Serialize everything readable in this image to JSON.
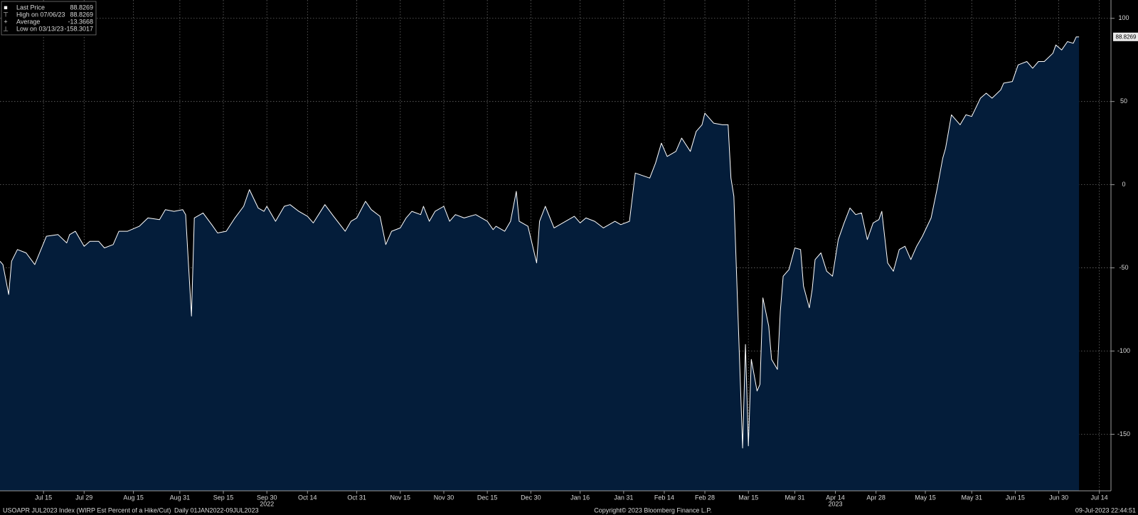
{
  "chart_data": {
    "type": "area",
    "legend": [
      {
        "label": "Last Price",
        "value": 88.8269
      },
      {
        "label": "High on 07/06/23",
        "value": 88.8269
      },
      {
        "label": "Average",
        "value": -13.3668
      },
      {
        "label": "Low on 03/13/23",
        "value": -158.3017
      }
    ],
    "x": [
      "2022-06-30",
      "2022-07-01",
      "2022-07-03",
      "2022-07-04",
      "2022-07-06",
      "2022-07-09",
      "2022-07-12",
      "2022-07-16",
      "2022-07-20",
      "2022-07-23",
      "2022-07-24",
      "2022-07-26",
      "2022-07-29",
      "2022-07-31",
      "2022-08-03",
      "2022-08-05",
      "2022-08-08",
      "2022-08-10",
      "2022-08-13",
      "2022-08-17",
      "2022-08-20",
      "2022-08-24",
      "2022-08-26",
      "2022-08-29",
      "2022-09-01",
      "2022-09-02",
      "2022-09-04",
      "2022-09-05",
      "2022-09-08",
      "2022-09-11",
      "2022-09-13",
      "2022-09-16",
      "2022-09-19",
      "2022-09-22",
      "2022-09-24",
      "2022-09-27",
      "2022-09-29",
      "2022-09-30",
      "2022-10-03",
      "2022-10-06",
      "2022-10-08",
      "2022-10-11",
      "2022-10-14",
      "2022-10-16",
      "2022-10-20",
      "2022-10-23",
      "2022-10-27",
      "2022-10-29",
      "2022-10-31",
      "2022-11-03",
      "2022-11-05",
      "2022-11-08",
      "2022-11-10",
      "2022-11-12",
      "2022-11-15",
      "2022-11-17",
      "2022-11-19",
      "2022-11-22",
      "2022-11-23",
      "2022-11-25",
      "2022-11-27",
      "2022-11-30",
      "2022-12-02",
      "2022-12-04",
      "2022-12-07",
      "2022-12-11",
      "2022-12-15",
      "2022-12-17",
      "2022-12-18",
      "2022-12-21",
      "2022-12-23",
      "2022-12-25",
      "2022-12-26",
      "2022-12-29",
      "2023-01-01",
      "2023-01-02",
      "2023-01-04",
      "2023-01-07",
      "2023-01-11",
      "2023-01-14",
      "2023-01-16",
      "2023-01-18",
      "2023-01-21",
      "2023-01-24",
      "2023-01-28",
      "2023-01-30",
      "2023-02-02",
      "2023-02-04",
      "2023-02-09",
      "2023-02-11",
      "2023-02-13",
      "2023-02-15",
      "2023-02-18",
      "2023-02-20",
      "2023-02-23",
      "2023-02-25",
      "2023-02-27",
      "2023-02-28",
      "2023-03-03",
      "2023-03-06",
      "2023-03-08",
      "2023-03-09",
      "2023-03-10",
      "2023-03-13",
      "2023-03-14",
      "2023-03-15",
      "2023-03-16",
      "2023-03-18",
      "2023-03-19",
      "2023-03-20",
      "2023-03-22",
      "2023-03-23",
      "2023-03-25",
      "2023-03-26",
      "2023-03-27",
      "2023-03-29",
      "2023-03-31",
      "2023-04-02",
      "2023-04-03",
      "2023-04-05",
      "2023-04-06",
      "2023-04-07",
      "2023-04-09",
      "2023-04-11",
      "2023-04-13",
      "2023-04-15",
      "2023-04-17",
      "2023-04-19",
      "2023-04-21",
      "2023-04-23",
      "2023-04-25",
      "2023-04-27",
      "2023-04-29",
      "2023-04-30",
      "2023-05-02",
      "2023-05-04",
      "2023-05-06",
      "2023-05-08",
      "2023-05-10",
      "2023-05-12",
      "2023-05-14",
      "2023-05-17",
      "2023-05-19",
      "2023-05-21",
      "2023-05-22",
      "2023-05-24",
      "2023-05-27",
      "2023-05-29",
      "2023-05-31",
      "2023-06-03",
      "2023-06-05",
      "2023-06-07",
      "2023-06-10",
      "2023-06-11",
      "2023-06-14",
      "2023-06-16",
      "2023-06-19",
      "2023-06-21",
      "2023-06-23",
      "2023-06-25",
      "2023-06-28",
      "2023-06-29",
      "2023-07-01",
      "2023-07-03",
      "2023-07-05",
      "2023-07-06",
      "2023-07-07"
    ],
    "series": [
      {
        "name": "Last Price",
        "color": "#ffffff",
        "fill": "#041d3a",
        "values": [
          -46,
          -48,
          -66,
          -46,
          -39,
          -41,
          -48,
          -31,
          -30,
          -35,
          -30,
          -28,
          -37,
          -34,
          -34,
          -38,
          -36,
          -28,
          -28,
          -25,
          -20,
          -21,
          -15,
          -16,
          -15,
          -18,
          -79,
          -20,
          -17,
          -24,
          -29,
          -28,
          -20,
          -13,
          -3,
          -14,
          -16,
          -13,
          -22,
          -13,
          -12,
          -16,
          -19,
          -23,
          -12,
          -19,
          -28,
          -22,
          -20,
          -10,
          -15,
          -19,
          -36,
          -28,
          -26,
          -20,
          -16,
          -18,
          -13,
          -22,
          -16,
          -13,
          -22,
          -18,
          -20,
          -18,
          -22,
          -27,
          -25,
          -28,
          -22,
          -4,
          -22,
          -25,
          -47,
          -22,
          -13,
          -26,
          -22,
          -19,
          -23,
          -20,
          -22,
          -26,
          -22,
          -24,
          -22,
          7,
          4,
          13,
          25,
          17,
          20,
          28,
          20,
          32,
          36,
          43,
          37,
          36,
          36,
          4,
          -7,
          -158.3,
          -96,
          -157,
          -105,
          -124,
          -120,
          -68,
          -85,
          -105,
          -111,
          -76,
          -55,
          -51,
          -38,
          -39,
          -61,
          -74,
          -63,
          -45,
          -41,
          -52,
          -55,
          -33,
          -23,
          -14,
          -18,
          -17,
          -33,
          -23,
          -21,
          -16,
          -47,
          -52,
          -39,
          -37,
          -45,
          -37,
          -31,
          -20,
          -3,
          16,
          22,
          42,
          36,
          42,
          41,
          52,
          55,
          52,
          57,
          61,
          62,
          72,
          74,
          70,
          74,
          74,
          79,
          84,
          81,
          86,
          85,
          88.8269,
          88.8269
        ]
      }
    ],
    "xlim": [
      "2022-06-30",
      "2023-07-18"
    ],
    "xticks": [
      {
        "value": "2022-07-15",
        "label": "Jul 15"
      },
      {
        "value": "2022-07-29",
        "label": "Jul 29"
      },
      {
        "value": "2022-08-15",
        "label": "Aug 15"
      },
      {
        "value": "2022-08-31",
        "label": "Aug 31"
      },
      {
        "value": "2022-09-15",
        "label": "Sep 15"
      },
      {
        "value": "2022-09-30",
        "label": "Sep 30"
      },
      {
        "value": "2022-10-14",
        "label": "Oct 14"
      },
      {
        "value": "2022-10-31",
        "label": "Oct 31"
      },
      {
        "value": "2022-11-15",
        "label": "Nov 15"
      },
      {
        "value": "2022-11-30",
        "label": "Nov 30"
      },
      {
        "value": "2022-12-15",
        "label": "Dec 15"
      },
      {
        "value": "2022-12-30",
        "label": "Dec 30"
      },
      {
        "value": "2023-01-16",
        "label": "Jan 16"
      },
      {
        "value": "2023-01-31",
        "label": "Jan 31"
      },
      {
        "value": "2023-02-14",
        "label": "Feb 14"
      },
      {
        "value": "2023-02-28",
        "label": "Feb 28"
      },
      {
        "value": "2023-03-15",
        "label": "Mar 15"
      },
      {
        "value": "2023-03-31",
        "label": "Mar 31"
      },
      {
        "value": "2023-04-14",
        "label": "Apr 14"
      },
      {
        "value": "2023-04-28",
        "label": "Apr 28"
      },
      {
        "value": "2023-05-15",
        "label": "May 15"
      },
      {
        "value": "2023-05-31",
        "label": "May 31"
      },
      {
        "value": "2023-06-15",
        "label": "Jun 15"
      },
      {
        "value": "2023-06-30",
        "label": "Jun 30"
      },
      {
        "value": "2023-07-14",
        "label": "Jul 14"
      }
    ],
    "year_labels": [
      {
        "value": "2022-09-30",
        "label": "2022"
      },
      {
        "value": "2023-04-14",
        "label": "2023"
      }
    ],
    "ylim": [
      -184,
      111
    ],
    "yticks": [
      -150,
      -100,
      -50,
      0,
      50,
      100
    ],
    "grid": true,
    "footer": {
      "security": "USOAPR JUL2023 Index (WIRP Est Percent of a Hike/Cut)",
      "range": "Daily 01JAN2022-09JUL2023",
      "copyright": "Copyright© 2023 Bloomberg Finance L.P.",
      "timestamp": "09-Jul-2023 22:44:51"
    }
  }
}
